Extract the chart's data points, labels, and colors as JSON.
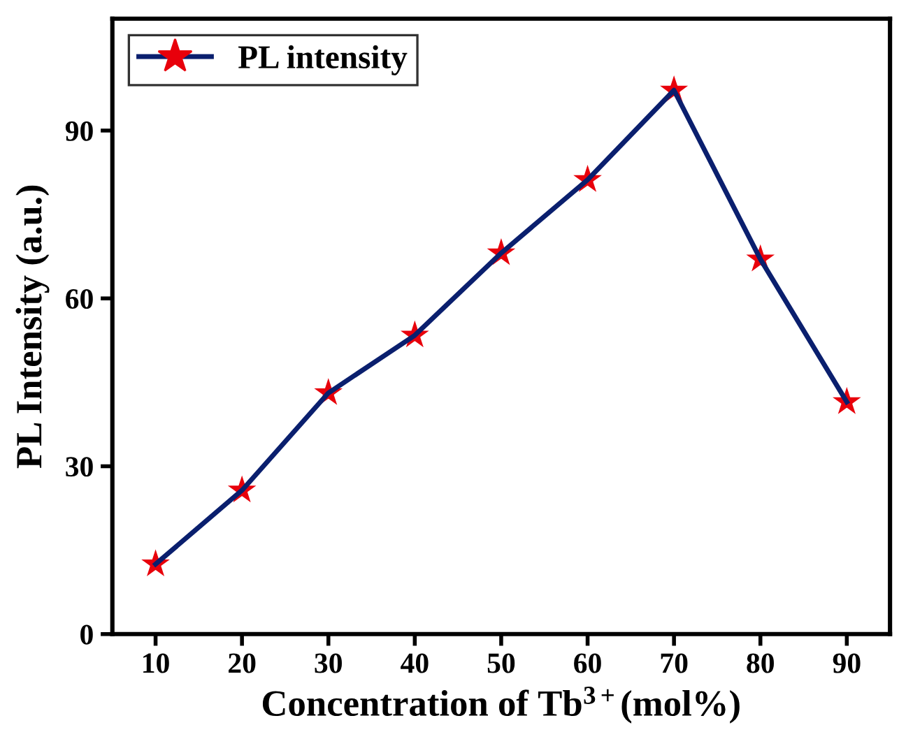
{
  "chart_data": {
    "type": "line",
    "xlabel": "Concentration of Tb$^{3+}$(mol%)",
    "ylabel": "PL Intensity (a.u.)",
    "x": [
      10,
      20,
      30,
      40,
      50,
      60,
      70,
      80,
      90
    ],
    "series": [
      {
        "name": "PL intensity",
        "color": "#0a1f6e",
        "colors": [
          "#e8000b",
          "#e8000b",
          "#e8000b",
          "#e8000b",
          "#e8000b",
          "#e8000b",
          "#e8000b",
          "#e8000b",
          "#e8000b"
        ],
        "values": [
          12.5,
          25.7,
          43.1,
          53.4,
          68.1,
          81.2,
          97.2,
          67.0,
          41.5
        ]
      }
    ],
    "xlim": [
      5,
      95
    ],
    "ylim": [
      0,
      110
    ],
    "xticks": [
      10,
      20,
      30,
      40,
      50,
      60,
      70,
      80,
      90
    ],
    "yticks": [
      0,
      30,
      60,
      90
    ],
    "marker": "star",
    "line_style": "solid",
    "legend": "top left",
    "grid": false
  }
}
